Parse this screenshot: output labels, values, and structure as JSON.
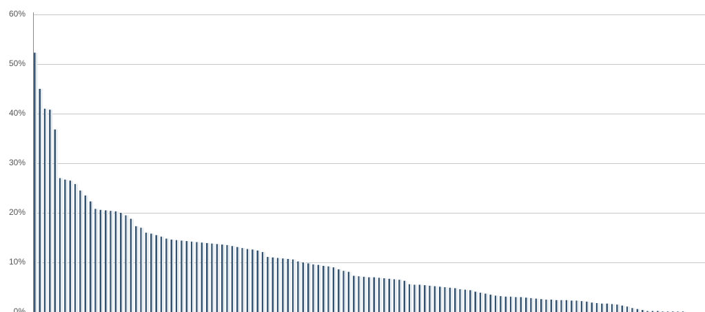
{
  "chart_data": {
    "type": "bar",
    "values": [
      52.3,
      45,
      41,
      40.8,
      36.8,
      27,
      26.7,
      26.5,
      25.8,
      24.5,
      23.5,
      22.3,
      20.8,
      20.6,
      20.5,
      20.4,
      20.3,
      20,
      19.5,
      18.8,
      17.3,
      17,
      16,
      15.8,
      15.5,
      15.2,
      14.8,
      14.6,
      14.5,
      14.4,
      14.3,
      14.2,
      14.1,
      14,
      13.9,
      13.8,
      13.7,
      13.6,
      13.5,
      13.3,
      13.1,
      12.9,
      12.7,
      12.6,
      12.4,
      12.1,
      11.1,
      11,
      10.9,
      10.8,
      10.7,
      10.6,
      10.2,
      10,
      9.8,
      9.6,
      9.5,
      9.3,
      9.2,
      9,
      8.6,
      8.3,
      8.1,
      7.3,
      7.2,
      7.1,
      7,
      7,
      6.9,
      6.8,
      6.7,
      6.6,
      6.5,
      6.3,
      5.6,
      5.5,
      5.5,
      5.4,
      5.3,
      5.2,
      5.1,
      5,
      4.9,
      4.8,
      4.6,
      4.5,
      4.4,
      4.1,
      3.9,
      3.7,
      3.5,
      3.3,
      3.2,
      3.1,
      3.1,
      3,
      3,
      2.9,
      2.8,
      2.7,
      2.6,
      2.5,
      2.5,
      2.4,
      2.4,
      2.4,
      2.3,
      2.3,
      2.2,
      2.1,
      1.9,
      1.8,
      1.7,
      1.7,
      1.6,
      1.5,
      1.3,
      1.1,
      0.8,
      0.6,
      0.4,
      0.2,
      0.2,
      0.2,
      0.1,
      0.1,
      0.1,
      0.1,
      0.1
    ],
    "color": "#34526e",
    "ylim": [
      0,
      60
    ],
    "yticks": [
      {
        "value": 0,
        "label": "0%"
      },
      {
        "value": 10,
        "label": "10%"
      },
      {
        "value": 20,
        "label": "20%"
      },
      {
        "value": 30,
        "label": "30%"
      },
      {
        "value": 40,
        "label": "40%"
      },
      {
        "value": 50,
        "label": "50%"
      },
      {
        "value": 60,
        "label": "60%"
      }
    ],
    "grid": true
  }
}
